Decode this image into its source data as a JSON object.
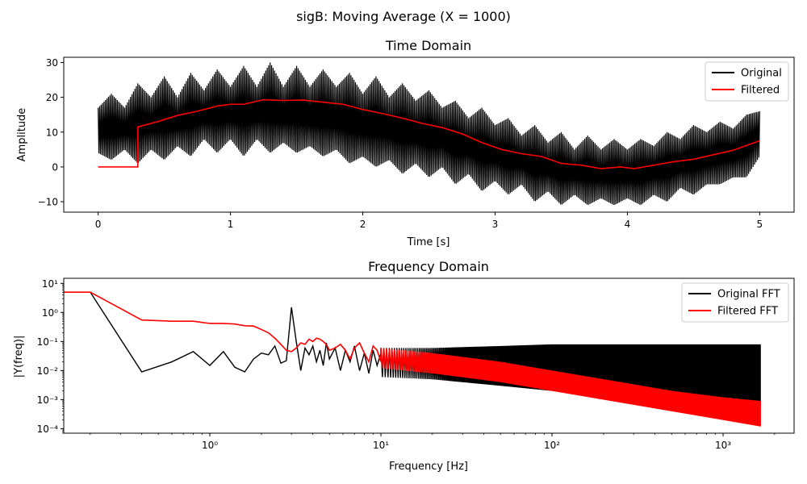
{
  "figure": {
    "suptitle": "sigB: Moving Average (X = 1000)"
  },
  "chart_data": [
    {
      "type": "line",
      "title": "Time Domain",
      "xlabel": "Time [s]",
      "ylabel": "Amplitude",
      "xlim": [
        -0.26,
        5.26
      ],
      "ylim": [
        -13,
        31.5
      ],
      "xticks": [
        0,
        1,
        2,
        3,
        4,
        5
      ],
      "xtick_labels": [
        "0",
        "1",
        "2",
        "3",
        "4",
        "5"
      ],
      "yticks": [
        -10,
        0,
        10,
        20,
        30
      ],
      "ytick_labels": [
        "−10",
        "0",
        "10",
        "20",
        "30"
      ],
      "grid": false,
      "legend": "top-right",
      "series": [
        {
          "name": "Original",
          "color": "#000000",
          "style": "band",
          "x": [
            0,
            0.1,
            0.2,
            0.3,
            0.4,
            0.5,
            0.6,
            0.7,
            0.8,
            0.9,
            1.0,
            1.1,
            1.2,
            1.3,
            1.4,
            1.5,
            1.6,
            1.7,
            1.8,
            1.9,
            2.0,
            2.1,
            2.2,
            2.3,
            2.4,
            2.5,
            2.6,
            2.7,
            2.8,
            2.9,
            3.0,
            3.1,
            3.2,
            3.3,
            3.4,
            3.5,
            3.6,
            3.7,
            3.8,
            3.9,
            4.0,
            4.1,
            4.2,
            4.3,
            4.4,
            4.5,
            4.6,
            4.7,
            4.8,
            4.9,
            5.0
          ],
          "upper": [
            17,
            21,
            17,
            24,
            20,
            26,
            20,
            27,
            22,
            28,
            23,
            29,
            23,
            30,
            23,
            29,
            23,
            28,
            23,
            27,
            21,
            26,
            20,
            24,
            19,
            22,
            17,
            19,
            14,
            17,
            12,
            14,
            9,
            12,
            7,
            10,
            5,
            9,
            5,
            8,
            5,
            8,
            6,
            10,
            8,
            12,
            10,
            13,
            11,
            15,
            16
          ],
          "lower": [
            4,
            2,
            5,
            1,
            5,
            2,
            6,
            3,
            8,
            4,
            8,
            3,
            8,
            4,
            7,
            4,
            6,
            3,
            5,
            1,
            3,
            0,
            2,
            -2,
            1,
            -3,
            0,
            -5,
            -2,
            -7,
            -4,
            -8,
            -5,
            -10,
            -7,
            -11,
            -8,
            -11,
            -9,
            -11,
            -9,
            -11,
            -8,
            -10,
            -6,
            -8,
            -5,
            -5,
            -3,
            -3,
            3
          ]
        },
        {
          "name": "Filtered",
          "color": "#ff0000",
          "style": "line",
          "x": [
            0,
            0.3,
            0.3,
            0.45,
            0.6,
            0.75,
            0.9,
            1.0,
            1.1,
            1.25,
            1.4,
            1.55,
            1.7,
            1.85,
            2.0,
            2.15,
            2.3,
            2.45,
            2.6,
            2.75,
            2.9,
            3.05,
            3.2,
            3.35,
            3.5,
            3.65,
            3.8,
            3.95,
            4.05,
            4.2,
            4.35,
            4.5,
            4.65,
            4.8,
            5.0
          ],
          "y": [
            0,
            0,
            11.5,
            13,
            14.8,
            16,
            17.5,
            18,
            18,
            19.3,
            19.1,
            19.2,
            18.6,
            18,
            16.5,
            15.3,
            14,
            12.5,
            11.3,
            9.5,
            7,
            5,
            3.8,
            3,
            1,
            0.5,
            -0.5,
            0,
            -0.5,
            0.5,
            1.5,
            2.2,
            3.5,
            4.8,
            7.5
          ]
        }
      ]
    },
    {
      "type": "line",
      "title": "Frequency Domain",
      "xlabel": "Frequency [Hz]",
      "ylabel": "|Y(freq)|",
      "xscale": "log",
      "yscale": "log",
      "xlim": [
        0.14,
        2600
      ],
      "ylim": [
        7e-05,
        15
      ],
      "xticks": [
        1,
        10,
        100,
        1000
      ],
      "xtick_labels": [
        "10⁰",
        "10¹",
        "10²",
        "10³"
      ],
      "yticks": [
        0.0001,
        0.001,
        0.01,
        0.1,
        1,
        10
      ],
      "ytick_labels": [
        "10⁻⁴",
        "10⁻³",
        "10⁻²",
        "10⁻¹",
        "10⁰",
        "10¹"
      ],
      "grid": false,
      "legend": "top-right",
      "series": [
        {
          "name": "Original FFT",
          "color": "#000000",
          "style": "line+band",
          "x": [
            0.14,
            0.2,
            0.4,
            0.6,
            0.8,
            1.0,
            1.2,
            1.4,
            1.6,
            1.8,
            2.0,
            2.2,
            2.4,
            2.6,
            2.8,
            3.0,
            3.2,
            3.4,
            3.6,
            3.8,
            4.0,
            4.2,
            4.4,
            4.6,
            4.8,
            5.0,
            5.4,
            5.8,
            6.2,
            6.6,
            7.0,
            7.5,
            8.0,
            8.5,
            9.0,
            9.5,
            10
          ],
          "y": [
            5,
            5,
            0.009,
            0.02,
            0.045,
            0.015,
            0.045,
            0.013,
            0.009,
            0.025,
            0.04,
            0.035,
            0.07,
            0.018,
            0.022,
            1.5,
            0.1,
            0.01,
            0.06,
            0.035,
            0.07,
            0.02,
            0.05,
            0.015,
            0.09,
            0.025,
            0.06,
            0.01,
            0.05,
            0.02,
            0.07,
            0.01,
            0.04,
            0.008,
            0.05,
            0.015,
            0.04
          ],
          "band_x": [
            10,
            20,
            50,
            100,
            200,
            500,
            1000,
            1650
          ],
          "band_upper": [
            0.06,
            0.06,
            0.07,
            0.08,
            0.08,
            0.08,
            0.08,
            0.08
          ],
          "band_lower": [
            0.006,
            0.005,
            0.003,
            0.002,
            0.0012,
            0.0008,
            0.0007,
            0.0006
          ]
        },
        {
          "name": "Filtered FFT",
          "color": "#ff0000",
          "style": "line+band",
          "x": [
            0.14,
            0.2,
            0.4,
            0.6,
            0.8,
            1.0,
            1.2,
            1.4,
            1.6,
            1.8,
            2.0,
            2.2,
            2.4,
            2.6,
            2.8,
            3.0,
            3.2,
            3.4,
            3.6,
            3.8,
            4.0,
            4.2,
            4.4,
            4.6,
            4.8,
            5.0,
            5.4,
            5.8,
            6.2,
            6.6,
            7.0,
            7.5,
            8.0,
            8.5,
            9.0,
            9.5,
            10
          ],
          "y": [
            5,
            5,
            0.55,
            0.5,
            0.5,
            0.42,
            0.42,
            0.4,
            0.35,
            0.34,
            0.26,
            0.2,
            0.13,
            0.08,
            0.05,
            0.045,
            0.06,
            0.09,
            0.08,
            0.12,
            0.1,
            0.13,
            0.12,
            0.1,
            0.08,
            0.05,
            0.06,
            0.08,
            0.05,
            0.025,
            0.06,
            0.09,
            0.04,
            0.02,
            0.07,
            0.05,
            0.02
          ],
          "band_x": [
            10,
            20,
            50,
            100,
            200,
            500,
            1000,
            1650
          ],
          "band_upper": [
            0.06,
            0.04,
            0.02,
            0.01,
            0.005,
            0.002,
            0.0012,
            0.0009
          ],
          "band_lower": [
            0.012,
            0.008,
            0.004,
            0.002,
            0.001,
            0.0004,
            0.0002,
            0.00012
          ]
        }
      ]
    }
  ]
}
